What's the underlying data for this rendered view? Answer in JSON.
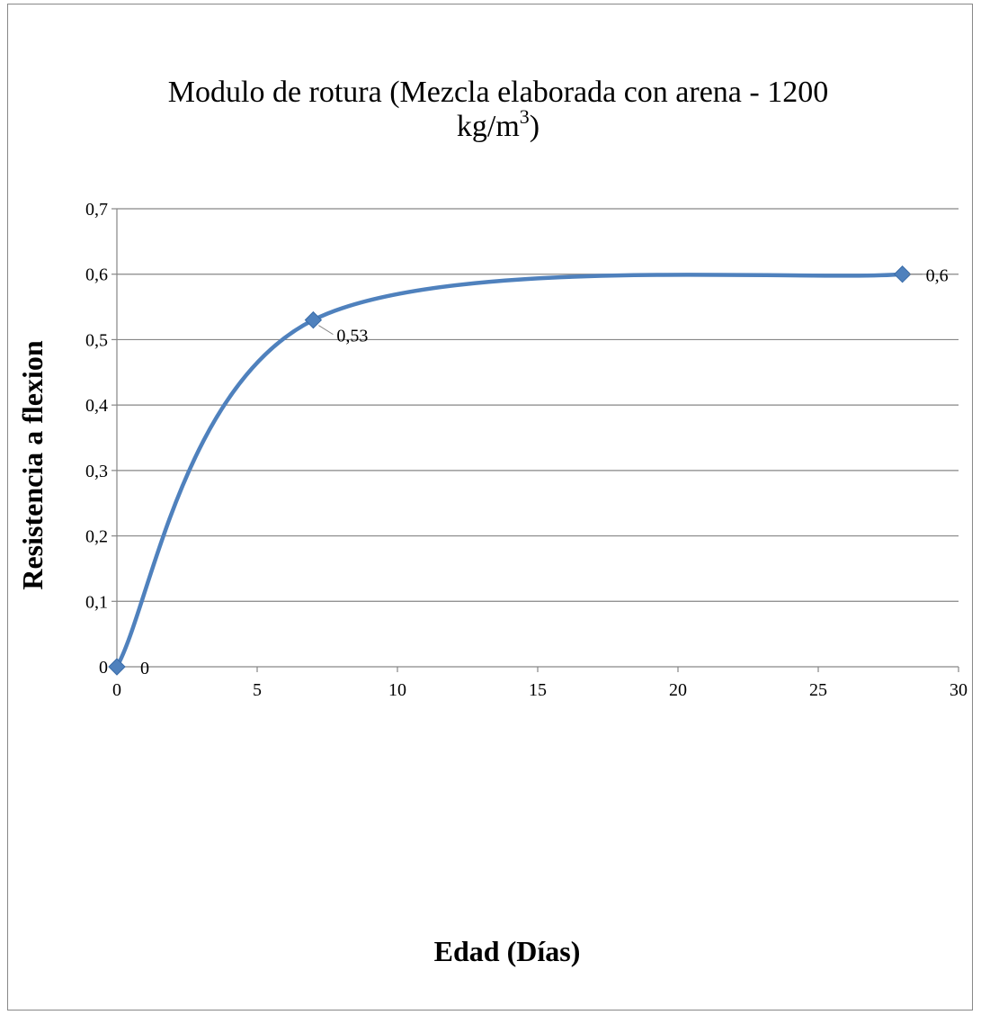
{
  "chart_data": {
    "type": "line",
    "title": "Modulo de rotura (Mezcla elaborada con arena - 1200",
    "title_line2": "kg/m",
    "title_sup": "3",
    "title_close": ")",
    "xlabel": "Edad (Días)",
    "ylabel": "Resistencia a flexion",
    "xlim": [
      0,
      30
    ],
    "ylim": [
      0,
      0.7
    ],
    "x_ticks": [
      0,
      5,
      10,
      15,
      20,
      25,
      30
    ],
    "x_tick_labels": [
      "0",
      "5",
      "10",
      "15",
      "20",
      "25",
      "30"
    ],
    "y_ticks": [
      0,
      0.1,
      0.2,
      0.3,
      0.4,
      0.5,
      0.6,
      0.7
    ],
    "y_tick_labels": [
      "0",
      "0,1",
      "0,2",
      "0,3",
      "0,4",
      "0,5",
      "0,6",
      "0,7"
    ],
    "grid": true,
    "smooth": true,
    "marker": "diamond",
    "series": [
      {
        "x": [
          0,
          7,
          28
        ],
        "y": [
          0,
          0.53,
          0.6
        ],
        "data_labels": [
          "0",
          "0,53",
          "0,6"
        ],
        "color": "#4F81BD"
      }
    ]
  }
}
